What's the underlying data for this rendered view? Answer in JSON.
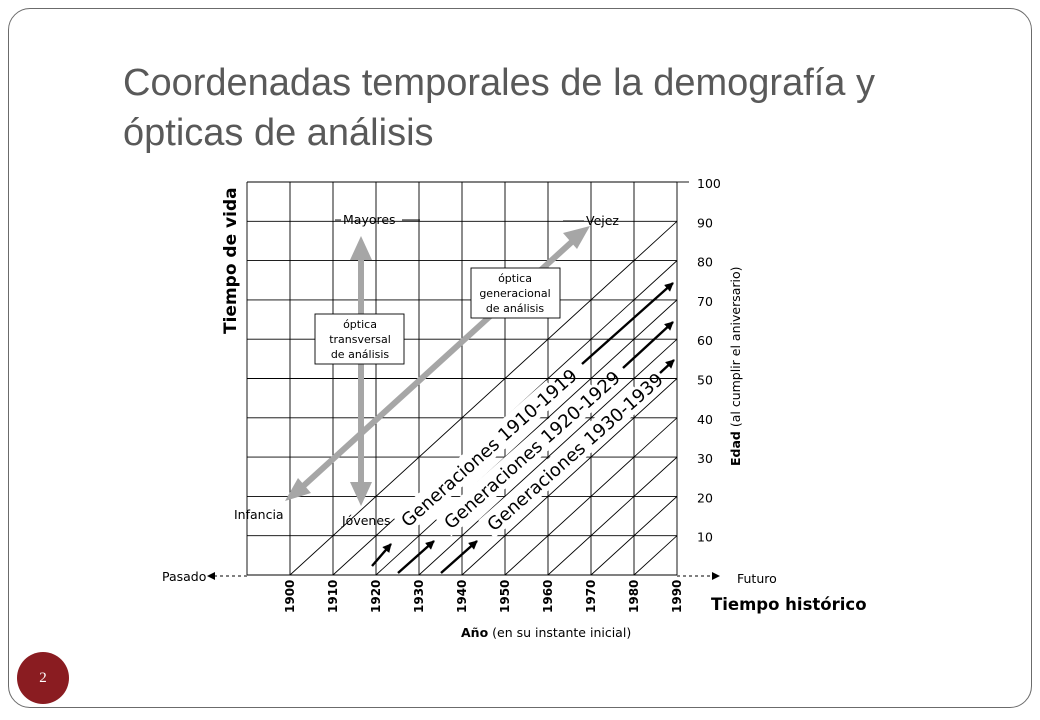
{
  "slide": {
    "title_lines": [
      "Coordenadas temporales de la demografía y",
      "ópticas de análisis"
    ],
    "page_number": "2",
    "accent_color": "#8a1c21"
  },
  "diagram": {
    "y_axis_title": "Tiempo de vida",
    "right_axis_title_bold": "Edad",
    "right_axis_title_rest": " (al cumplir el aniversario)",
    "x_axis_title_bold": "Año",
    "x_axis_title_rest": " (en su instante inicial)",
    "historical_time_label": "Tiempo histórico",
    "past_label": "Pasado",
    "future_label": "Futuro",
    "year_ticks": [
      "1900",
      "1910",
      "1920",
      "1930",
      "1940",
      "1950",
      "1960",
      "1970",
      "1980",
      "1990"
    ],
    "age_ticks": [
      "10",
      "20",
      "30",
      "40",
      "50",
      "60",
      "70",
      "80",
      "90",
      "100"
    ],
    "corner_labels": {
      "mayores": "Mayores",
      "vejez": "Vejez",
      "infancia": "Infancia",
      "jovenes": "Jóvenes"
    },
    "transversal_box": [
      "óptica",
      "transversal",
      "de análisis"
    ],
    "generational_box": [
      "óptica",
      "generacional",
      "de análisis"
    ],
    "generations": [
      "Generaciones 1910-1919",
      "Generaciones 1920-1929",
      "Generaciones 1930-1939"
    ],
    "arrow_color": "#a6a6a6"
  }
}
